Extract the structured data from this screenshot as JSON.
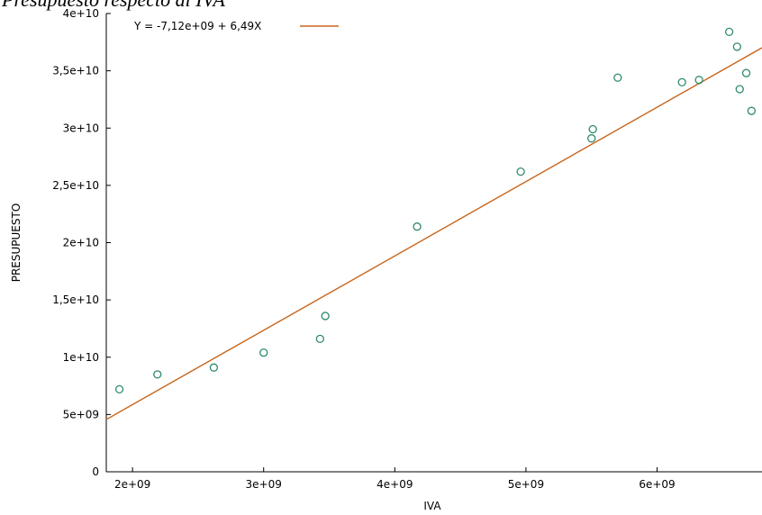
{
  "chart_data": {
    "type": "scatter",
    "title": "Presupuesto respecto al IVA",
    "xlabel": "IVA",
    "ylabel": "PRESUPUESTO",
    "xlim": [
      1800000000,
      6800000000
    ],
    "ylim": [
      0,
      40000000000
    ],
    "x_ticks": [
      {
        "value": 2000000000,
        "label": "2e+09"
      },
      {
        "value": 3000000000,
        "label": "3e+09"
      },
      {
        "value": 4000000000,
        "label": "4e+09"
      },
      {
        "value": 5000000000,
        "label": "5e+09"
      },
      {
        "value": 6000000000,
        "label": "6e+09"
      }
    ],
    "y_ticks": [
      {
        "value": 0,
        "label": "0"
      },
      {
        "value": 5000000000,
        "label": "5e+09"
      },
      {
        "value": 10000000000,
        "label": "1e+10"
      },
      {
        "value": 15000000000,
        "label": "1,5e+10"
      },
      {
        "value": 20000000000,
        "label": "2e+10"
      },
      {
        "value": 25000000000,
        "label": "2,5e+10"
      },
      {
        "value": 30000000000,
        "label": "3e+10"
      },
      {
        "value": 35000000000,
        "label": "3,5e+10"
      },
      {
        "value": 40000000000,
        "label": "4e+10"
      }
    ],
    "points": [
      {
        "x": 1900000000,
        "y": 7200000000
      },
      {
        "x": 2190000000,
        "y": 8500000000
      },
      {
        "x": 2620000000,
        "y": 9100000000
      },
      {
        "x": 3000000000,
        "y": 10400000000
      },
      {
        "x": 3430000000,
        "y": 11600000000
      },
      {
        "x": 3470000000,
        "y": 13600000000
      },
      {
        "x": 4170000000,
        "y": 21400000000
      },
      {
        "x": 4960000000,
        "y": 26200000000
      },
      {
        "x": 5500000000,
        "y": 29100000000
      },
      {
        "x": 5510000000,
        "y": 29900000000
      },
      {
        "x": 5700000000,
        "y": 34400000000
      },
      {
        "x": 6190000000,
        "y": 34000000000
      },
      {
        "x": 6320000000,
        "y": 34200000000
      },
      {
        "x": 6550000000,
        "y": 38400000000
      },
      {
        "x": 6610000000,
        "y": 37100000000
      },
      {
        "x": 6630000000,
        "y": 33400000000
      },
      {
        "x": 6680000000,
        "y": 34800000000
      },
      {
        "x": 6720000000,
        "y": 31500000000
      }
    ],
    "fit": {
      "intercept": -7120000000,
      "slope": 6.49,
      "label": "Y = -7,12e+09 + 6,49X",
      "color": "#c8661d"
    },
    "point_color": "#2e8b6e",
    "legend_position": "top-left",
    "grid": false
  }
}
